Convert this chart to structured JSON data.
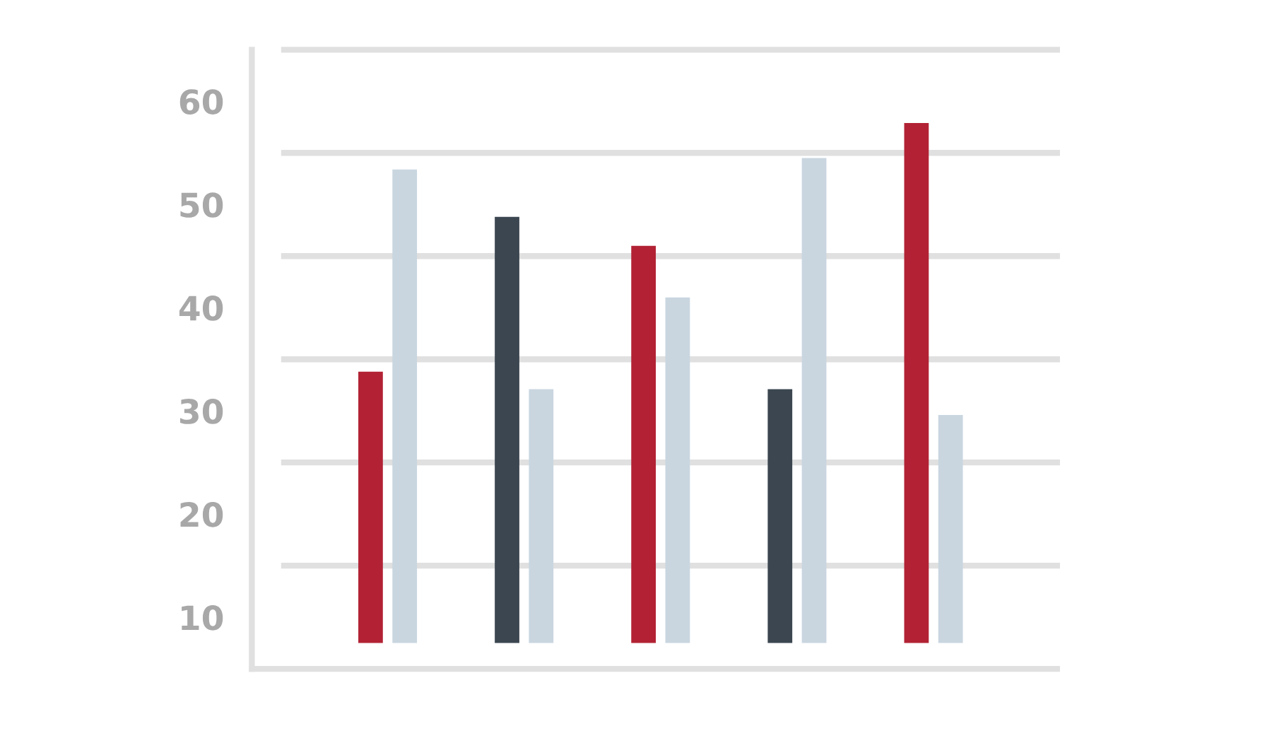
{
  "chart_data": {
    "type": "bar",
    "categories": [
      null,
      null,
      null,
      null,
      null
    ],
    "series": [
      {
        "colors": [
          "#b22234",
          "#3b4650",
          "#b22234",
          "#3b4650",
          "#b22234"
        ],
        "values": [
          26.3,
          41.3,
          38.5,
          24.6,
          50.4
        ],
        "base": [
          7.5,
          7.5,
          7.5,
          7.5,
          7.5
        ]
      },
      {
        "color": "#c9d6e0",
        "values": [
          45.9,
          24.6,
          33.5,
          47.0,
          22.1
        ],
        "base": [
          7.5,
          7.5,
          7.5,
          7.5,
          7.5
        ]
      }
    ],
    "ylim": [
      5,
      65
    ],
    "yticks": [
      10,
      20,
      30,
      40,
      50,
      60
    ],
    "ref_lines": [
      {
        "axis": "y",
        "value": 15,
        "color": "#e0e0e0"
      },
      {
        "axis": "y",
        "value": 25,
        "color": "#e0e0e0"
      },
      {
        "axis": "y",
        "value": 35,
        "color": "#e0e0e0"
      },
      {
        "axis": "y",
        "value": 45,
        "color": "#e0e0e0"
      },
      {
        "axis": "y",
        "value": 55,
        "color": "#e0e0e0"
      },
      {
        "axis": "y",
        "value": 65,
        "color": "#e0e0e0"
      }
    ],
    "grid": false,
    "legend": false
  }
}
